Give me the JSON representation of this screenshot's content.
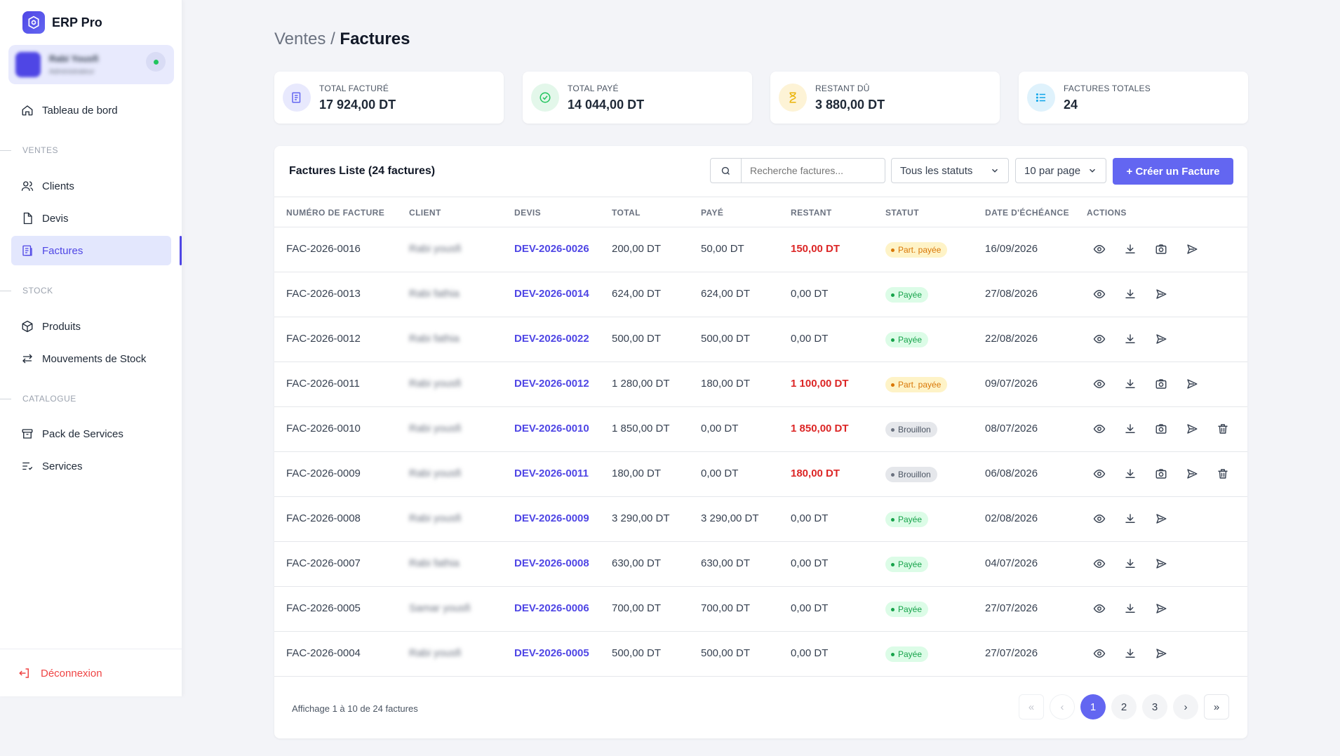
{
  "app": {
    "name": "ERP Pro",
    "user_name": "Rabi Yousfi",
    "user_role": "Administrateur"
  },
  "sidebar": {
    "dashboard": "Tableau de bord",
    "sections": {
      "ventes": "VENTES",
      "stock": "STOCK",
      "catalogue": "CATALOGUE"
    },
    "items": {
      "clients": "Clients",
      "devis": "Devis",
      "factures": "Factures",
      "produits": "Produits",
      "mouvements": "Mouvements de Stock",
      "packs": "Pack de Services",
      "services": "Services"
    },
    "logout": "Déconnexion"
  },
  "breadcrumb": {
    "parent": "Ventes",
    "separator": " / ",
    "current": "Factures"
  },
  "stats": [
    {
      "label": "TOTAL FACTURÉ",
      "value": "17 924,00 DT",
      "icon": "invoice-icon",
      "color": "#6366f1",
      "bg": "#e8e9fd"
    },
    {
      "label": "TOTAL PAYÉ",
      "value": "14 044,00 DT",
      "icon": "check-circle-icon",
      "color": "#22c55e",
      "bg": "#e3f7ea"
    },
    {
      "label": "RESTANT DÛ",
      "value": "3 880,00 DT",
      "icon": "hourglass-icon",
      "color": "#eab308",
      "bg": "#fdf3d6"
    },
    {
      "label": "FACTURES TOTALES",
      "value": "24",
      "icon": "list-icon",
      "color": "#0ea5e9",
      "bg": "#dff2fc"
    }
  ],
  "panel": {
    "title": "Factures Liste (24 factures)",
    "search_placeholder": "Recherche factures...",
    "status_filter": "Tous les statuts",
    "per_page": "10 par page",
    "create_label": "+ Créer un Facture"
  },
  "table": {
    "columns": [
      "NUMÉRO DE FACTURE",
      "CLIENT",
      "DEVIS",
      "TOTAL",
      "PAYÉ",
      "RESTANT",
      "STATUT",
      "DATE D'ÉCHÉANCE",
      "ACTIONS"
    ],
    "rows": [
      {
        "numero": "FAC-2026-0016",
        "client": "Rabi yousfi",
        "devis": "DEV-2026-0026",
        "total": "200,00 DT",
        "paye": "50,00 DT",
        "restant": "150,00 DT",
        "due": true,
        "statut": "Part. payée",
        "kind": "part",
        "echeance": "16/09/2026",
        "actions": [
          "view",
          "download",
          "camera",
          "send"
        ]
      },
      {
        "numero": "FAC-2026-0013",
        "client": "Rabi fathia",
        "devis": "DEV-2026-0014",
        "total": "624,00 DT",
        "paye": "624,00 DT",
        "restant": "0,00 DT",
        "due": false,
        "statut": "Payée",
        "kind": "payee",
        "echeance": "27/08/2026",
        "actions": [
          "view",
          "download",
          "send"
        ]
      },
      {
        "numero": "FAC-2026-0012",
        "client": "Rabi fathia",
        "devis": "DEV-2026-0022",
        "total": "500,00 DT",
        "paye": "500,00 DT",
        "restant": "0,00 DT",
        "due": false,
        "statut": "Payée",
        "kind": "payee",
        "echeance": "22/08/2026",
        "actions": [
          "view",
          "download",
          "send"
        ]
      },
      {
        "numero": "FAC-2026-0011",
        "client": "Rabi yousfi",
        "devis": "DEV-2026-0012",
        "total": "1 280,00 DT",
        "paye": "180,00 DT",
        "restant": "1 100,00 DT",
        "due": true,
        "statut": "Part. payée",
        "kind": "part",
        "echeance": "09/07/2026",
        "actions": [
          "view",
          "download",
          "camera",
          "send"
        ]
      },
      {
        "numero": "FAC-2026-0010",
        "client": "Rabi yousfi",
        "devis": "DEV-2026-0010",
        "total": "1 850,00 DT",
        "paye": "0,00 DT",
        "restant": "1 850,00 DT",
        "due": true,
        "statut": "Brouillon",
        "kind": "brouillon",
        "echeance": "08/07/2026",
        "actions": [
          "view",
          "download",
          "camera",
          "send",
          "trash"
        ]
      },
      {
        "numero": "FAC-2026-0009",
        "client": "Rabi yousfi",
        "devis": "DEV-2026-0011",
        "total": "180,00 DT",
        "paye": "0,00 DT",
        "restant": "180,00 DT",
        "due": true,
        "statut": "Brouillon",
        "kind": "brouillon",
        "echeance": "06/08/2026",
        "actions": [
          "view",
          "download",
          "camera",
          "send",
          "trash"
        ]
      },
      {
        "numero": "FAC-2026-0008",
        "client": "Rabi yousfi",
        "devis": "DEV-2026-0009",
        "total": "3 290,00 DT",
        "paye": "3 290,00 DT",
        "restant": "0,00 DT",
        "due": false,
        "statut": "Payée",
        "kind": "payee",
        "echeance": "02/08/2026",
        "actions": [
          "view",
          "download",
          "send"
        ]
      },
      {
        "numero": "FAC-2026-0007",
        "client": "Rabi fathia",
        "devis": "DEV-2026-0008",
        "total": "630,00 DT",
        "paye": "630,00 DT",
        "restant": "0,00 DT",
        "due": false,
        "statut": "Payée",
        "kind": "payee",
        "echeance": "04/07/2026",
        "actions": [
          "view",
          "download",
          "send"
        ]
      },
      {
        "numero": "FAC-2026-0005",
        "client": "Samar yousfi",
        "devis": "DEV-2026-0006",
        "total": "700,00 DT",
        "paye": "700,00 DT",
        "restant": "0,00 DT",
        "due": false,
        "statut": "Payée",
        "kind": "payee",
        "echeance": "27/07/2026",
        "actions": [
          "view",
          "download",
          "send"
        ]
      },
      {
        "numero": "FAC-2026-0004",
        "client": "Rabi yousfi",
        "devis": "DEV-2026-0005",
        "total": "500,00 DT",
        "paye": "500,00 DT",
        "restant": "0,00 DT",
        "due": false,
        "statut": "Payée",
        "kind": "payee",
        "echeance": "27/07/2026",
        "actions": [
          "view",
          "download",
          "send"
        ]
      }
    ]
  },
  "footer": {
    "summary": "Affichage 1 à 10 de 24 factures"
  },
  "pagination": {
    "first": "«",
    "prev": "‹",
    "pages": [
      "1",
      "2",
      "3"
    ],
    "current": "1",
    "next": "›",
    "last": "»"
  }
}
